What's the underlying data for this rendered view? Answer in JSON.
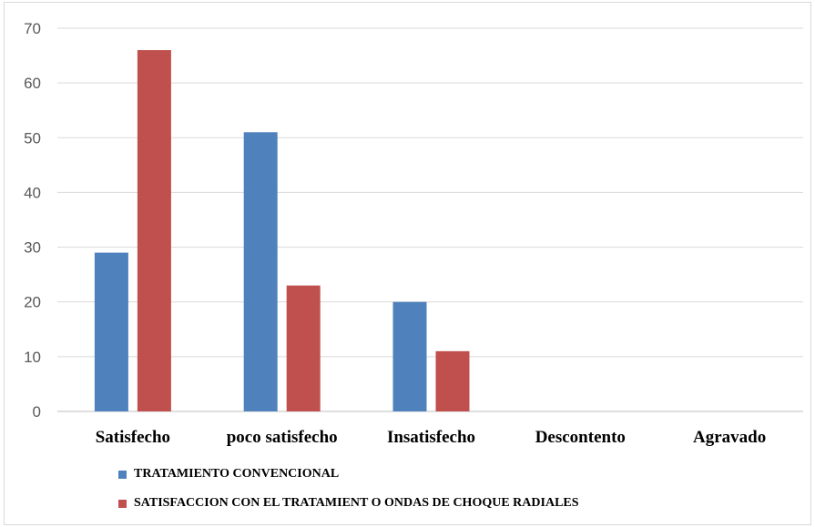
{
  "chart_data": {
    "type": "bar",
    "categories": [
      "Satisfecho",
      "poco satisfecho",
      "Insatisfecho",
      "Descontento",
      "Agravado"
    ],
    "series": [
      {
        "name": "TRATAMIENTO CONVENCIONAL",
        "color": "#4f81bd",
        "values": [
          29,
          51,
          20,
          0,
          0
        ]
      },
      {
        "name": "SATISFACCION CON EL TRATAMIENT O ONDAS DE CHOQUE RADIALES",
        "color": "#c0504d",
        "values": [
          66,
          23,
          11,
          0,
          0
        ]
      }
    ],
    "yticks": [
      "0",
      "10",
      "20",
      "30",
      "40",
      "50",
      "60",
      "70"
    ],
    "ylim": [
      0,
      70
    ],
    "grid": true,
    "legend_position": "bottom-left"
  }
}
